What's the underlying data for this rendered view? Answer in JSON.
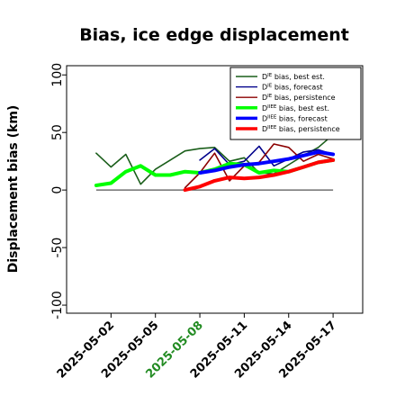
{
  "chart_data": {
    "type": "line",
    "title": "Bias, ice edge displacement",
    "xlabel": "",
    "ylabel": "Displacement bias (km)",
    "ylim": [
      -107,
      108
    ],
    "yticks": [
      -100,
      -50,
      0,
      50,
      100
    ],
    "xlim": [
      "2025-04-29",
      "2025-05-19"
    ],
    "xticks": [
      {
        "label": "2025-05-02",
        "date": "2025-05-02",
        "color": "#000000"
      },
      {
        "label": "2025-05-05",
        "date": "2025-05-05",
        "color": "#000000"
      },
      {
        "label": "2025-05-08",
        "date": "2025-05-08",
        "color": "#228B22"
      },
      {
        "label": "2025-05-11",
        "date": "2025-05-11",
        "color": "#000000"
      },
      {
        "label": "2025-05-14",
        "date": "2025-05-14",
        "color": "#000000"
      },
      {
        "label": "2025-05-17",
        "date": "2025-05-17",
        "color": "#000000"
      }
    ],
    "reference_line": {
      "y": 0,
      "from": "2025-05-01",
      "to": "2025-05-17",
      "color": "#555555"
    },
    "legend_position": "top-right",
    "series": [
      {
        "name_base": "D",
        "name_sup": "IE",
        "name_suffix": " bias, best est.",
        "color": "#1a5e1a",
        "width": 1.6,
        "x": [
          "2025-05-01",
          "2025-05-02",
          "2025-05-03",
          "2025-05-04",
          "2025-05-05",
          "2025-05-06",
          "2025-05-07",
          "2025-05-08",
          "2025-05-09",
          "2025-05-10",
          "2025-05-11",
          "2025-05-12",
          "2025-05-13",
          "2025-05-14",
          "2025-05-15",
          "2025-05-16",
          "2025-05-17"
        ],
        "y": [
          32,
          20,
          31,
          5,
          18,
          26,
          34,
          36,
          37,
          25,
          28,
          15,
          14,
          22,
          30,
          37,
          48
        ]
      },
      {
        "name_base": "D",
        "name_sup": "IE",
        "name_suffix": " bias, forecast",
        "color": "#00008b",
        "width": 1.6,
        "x": [
          "2025-05-08",
          "2025-05-09",
          "2025-05-10",
          "2025-05-11",
          "2025-05-12",
          "2025-05-13",
          "2025-05-14",
          "2025-05-15",
          "2025-05-16",
          "2025-05-17"
        ],
        "y": [
          26,
          36,
          22,
          25,
          38,
          21,
          27,
          33,
          35,
          31
        ]
      },
      {
        "name_base": "D",
        "name_sup": "IE",
        "name_suffix": " bias, persistence",
        "color": "#8b0000",
        "width": 1.6,
        "x": [
          "2025-05-07",
          "2025-05-08",
          "2025-05-09",
          "2025-05-10",
          "2025-05-11",
          "2025-05-12",
          "2025-05-13",
          "2025-05-14",
          "2025-05-15",
          "2025-05-16",
          "2025-05-17"
        ],
        "y": [
          2,
          15,
          32,
          8,
          21,
          24,
          40,
          37,
          25,
          31,
          27
        ]
      },
      {
        "name_base": "D",
        "name_sup": "IIEE",
        "name_suffix": " bias, best est.",
        "color": "#00ff00",
        "width": 4,
        "x": [
          "2025-05-01",
          "2025-05-02",
          "2025-05-03",
          "2025-05-04",
          "2025-05-05",
          "2025-05-06",
          "2025-05-07",
          "2025-05-08",
          "2025-05-09",
          "2025-05-10",
          "2025-05-11",
          "2025-05-12",
          "2025-05-13",
          "2025-05-14",
          "2025-05-15",
          "2025-05-16",
          "2025-05-17"
        ],
        "y": [
          4,
          6,
          16,
          21,
          13,
          13,
          16,
          15,
          18,
          23,
          22,
          15,
          17,
          16,
          20,
          24,
          26
        ]
      },
      {
        "name_base": "D",
        "name_sup": "IIEE",
        "name_suffix": " bias, forecast",
        "color": "#0000ff",
        "width": 4,
        "x": [
          "2025-05-08",
          "2025-05-09",
          "2025-05-10",
          "2025-05-11",
          "2025-05-12",
          "2025-05-13",
          "2025-05-14",
          "2025-05-15",
          "2025-05-16",
          "2025-05-17"
        ],
        "y": [
          15,
          17,
          20,
          22,
          23,
          25,
          27,
          30,
          33,
          31
        ]
      },
      {
        "name_base": "D",
        "name_sup": "IIEE",
        "name_suffix": " bias, persistence",
        "color": "#ff0000",
        "width": 4,
        "x": [
          "2025-05-07",
          "2025-05-08",
          "2025-05-09",
          "2025-05-10",
          "2025-05-11",
          "2025-05-12",
          "2025-05-13",
          "2025-05-14",
          "2025-05-15",
          "2025-05-16",
          "2025-05-17"
        ],
        "y": [
          0,
          3,
          8,
          11,
          10,
          11,
          13,
          16,
          20,
          24,
          26
        ]
      }
    ]
  }
}
